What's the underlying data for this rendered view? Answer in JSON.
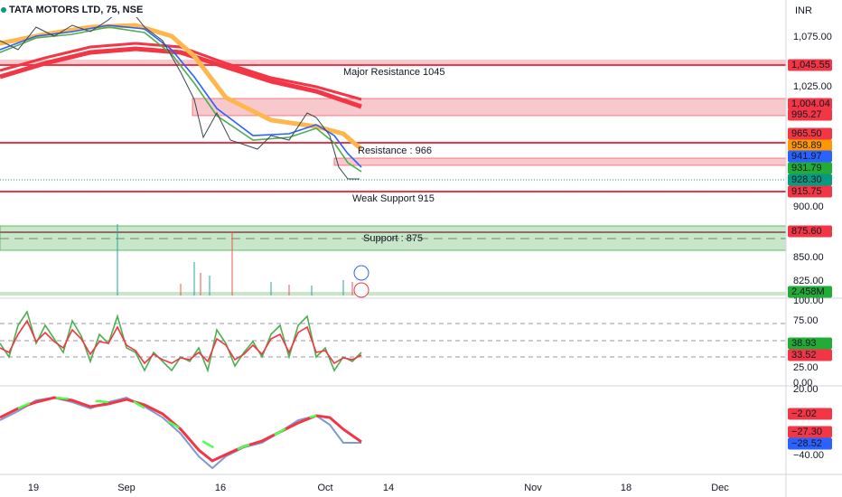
{
  "header": {
    "symbol": "TATA MOTORS LTD, 75, NSE",
    "currency": "INR"
  },
  "annotations": [
    "Major Resistance 1045",
    "Resistance : 966",
    "Weak Support 915",
    "Support : 875"
  ],
  "price_axis_ticks": [
    "1,075.00",
    "1,025.00",
    "900.00",
    "850.00",
    "825.00"
  ],
  "price_tags": [
    {
      "label": "1,045.55",
      "color": "#f23645"
    },
    {
      "label": "1,004.04",
      "color": "#f23645"
    },
    {
      "label": "995.27",
      "color": "#f23645"
    },
    {
      "label": "965.50",
      "color": "#f23645"
    },
    {
      "label": "958.89",
      "color": "#ff9800"
    },
    {
      "label": "941.97",
      "color": "#2962ff"
    },
    {
      "label": "931.79",
      "color": "#22ab36"
    },
    {
      "label": "928.30",
      "color": "#089981"
    },
    {
      "label": "915.75",
      "color": "#f23645"
    },
    {
      "label": "875.60",
      "color": "#f23645"
    },
    {
      "label": "2.458M",
      "color": "#22ab36"
    }
  ],
  "rsi_axis_ticks": [
    "100.00",
    "75.00",
    "25.00",
    "0.00"
  ],
  "rsi_tags": [
    {
      "label": "38.93",
      "color": "#22ab36"
    },
    {
      "label": "33.52",
      "color": "#f23645"
    }
  ],
  "macd_axis_ticks": [
    "20.00",
    "−40.00"
  ],
  "macd_tags": [
    {
      "label": "−2.02",
      "color": "#f23645"
    },
    {
      "label": "−27.30",
      "color": "#f23645"
    },
    {
      "label": "−28.52",
      "color": "#2962ff"
    }
  ],
  "time_axis": [
    "19",
    "Sep",
    "16",
    "Oct",
    "14",
    "Nov",
    "18",
    "Dec"
  ]
}
